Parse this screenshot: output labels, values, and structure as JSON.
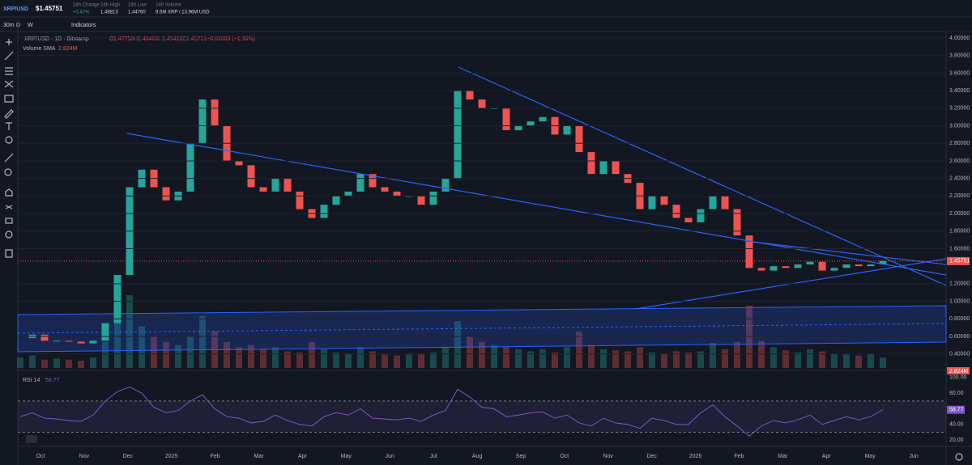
{
  "header": {
    "symbol": "XRP/USD",
    "price": "$1.45751",
    "stats": [
      {
        "label": "24h Change",
        "value": "+0.47%"
      },
      {
        "label": "24h High",
        "value": "1.48813"
      },
      {
        "label": "24h Low",
        "value": "1.44760"
      },
      {
        "label": "24h Volume",
        "value": "9.5M XRP / 13.96M USD"
      }
    ]
  },
  "toolbar": {
    "intervals": [
      "30m",
      "D",
      "W"
    ],
    "indicators": "Indicators"
  },
  "legend": {
    "symbol_line": "XRP/USD · 1D · Bitstamp",
    "ohlc": [
      {
        "label": "O",
        "value": "1.47750"
      },
      {
        "label": "H",
        "value": "1.48466"
      },
      {
        "label": "L",
        "value": "1.45422"
      },
      {
        "label": "C",
        "value": "1.45751"
      }
    ],
    "change": "−0.02003 (−1.36%)",
    "volume_label": "Volume SMA",
    "volume_value": "2.824M"
  },
  "chart_data": {
    "type": "candlestick",
    "close": [
      0.58,
      0.62,
      0.55,
      0.55,
      0.54,
      0.52,
      0.55,
      0.75,
      1.3,
      2.3,
      2.5,
      2.3,
      2.15,
      2.25,
      2.8,
      3.3,
      3.0,
      2.6,
      2.55,
      2.3,
      2.25,
      2.4,
      2.25,
      2.05,
      1.95,
      2.1,
      2.2,
      2.25,
      2.45,
      2.3,
      2.25,
      2.2,
      2.2,
      2.1,
      2.25,
      2.4,
      3.4,
      3.3,
      3.2,
      3.2,
      2.95,
      3.0,
      3.05,
      3.1,
      2.9,
      3.0,
      2.7,
      2.45,
      2.6,
      2.45,
      2.35,
      2.05,
      2.2,
      2.1,
      1.95,
      1.9,
      2.05,
      2.2,
      2.05,
      1.75,
      1.38,
      1.35,
      1.4,
      1.38,
      1.42,
      1.45,
      1.35,
      1.38,
      1.42,
      1.4,
      1.42,
      1.46
    ],
    "volume": [
      1,
      1.2,
      0.8,
      0.9,
      0.8,
      0.7,
      1,
      2.5,
      5,
      7,
      4,
      3,
      2.5,
      2.2,
      3,
      5,
      3.5,
      2.5,
      2,
      2.2,
      1.8,
      2,
      1.6,
      1.5,
      2.5,
      1.8,
      1.5,
      1.4,
      2,
      1.6,
      1.3,
      1.2,
      1.3,
      1.4,
      1.5,
      2,
      4.5,
      3,
      2.5,
      2.2,
      2,
      1.8,
      1.6,
      1.8,
      1.5,
      2,
      3.5,
      2.2,
      1.8,
      1.7,
      1.6,
      2,
      1.5,
      1.4,
      1.6,
      1.5,
      1.6,
      2.4,
      1.8,
      2.5,
      6,
      2.6,
      2,
      1.7,
      1.5,
      1.8,
      1.6,
      1.4,
      1.3,
      1.2,
      1.4,
      1
    ],
    "ylim": [
      0.24,
      4.065
    ],
    "yticks": [
      {
        "value": 4.0,
        "label": "4.00000"
      },
      {
        "value": 3.8,
        "label": "3.80000"
      },
      {
        "value": 3.6,
        "label": "3.60000"
      },
      {
        "value": 3.4,
        "label": "3.40000"
      },
      {
        "value": 3.2,
        "label": "3.20000"
      },
      {
        "value": 3.0,
        "label": "3.00000"
      },
      {
        "value": 2.8,
        "label": "2.80000"
      },
      {
        "value": 2.6,
        "label": "2.60000"
      },
      {
        "value": 2.4,
        "label": "2.40000"
      },
      {
        "value": 2.2,
        "label": "2.20000"
      },
      {
        "value": 2.0,
        "label": "2.00000"
      },
      {
        "value": 1.8,
        "label": "1.80000"
      },
      {
        "value": 1.6,
        "label": "1.60000"
      },
      {
        "value": 1.2,
        "label": "1.20000"
      },
      {
        "value": 1.0,
        "label": "1.00000"
      },
      {
        "value": 0.8,
        "label": "0.80000"
      },
      {
        "value": 0.6,
        "label": "0.60000"
      },
      {
        "value": 0.4,
        "label": "0.40000"
      }
    ],
    "last_price": {
      "value": 1.45751,
      "label": "1.45751"
    },
    "x_labels": [
      "Oct",
      "Nov",
      "Dec",
      "2025",
      "Feb",
      "Mar",
      "Apr",
      "May",
      "Jun",
      "Jul",
      "Aug",
      "Sep",
      "Oct",
      "Nov",
      "Dec",
      "2026",
      "Feb",
      "Mar",
      "Apr",
      "May",
      "Jun"
    ],
    "rsi": {
      "name": "RSI 14",
      "value": 58.77,
      "value_label": "58.77",
      "ylim": [
        14,
        104
      ],
      "band": [
        30,
        70
      ],
      "yticks": [
        {
          "value": 100,
          "label": "100.00"
        },
        {
          "value": 80,
          "label": "80.00"
        },
        {
          "value": 40,
          "label": "40.00"
        },
        {
          "value": 20,
          "label": "20.00"
        }
      ],
      "values": [
        50,
        55,
        48,
        47,
        45,
        44,
        52,
        70,
        82,
        88,
        80,
        62,
        55,
        58,
        70,
        78,
        60,
        50,
        48,
        42,
        44,
        52,
        45,
        40,
        38,
        50,
        55,
        52,
        60,
        48,
        47,
        46,
        48,
        44,
        52,
        58,
        85,
        75,
        62,
        60,
        50,
        52,
        55,
        56,
        48,
        52,
        42,
        38,
        48,
        42,
        40,
        35,
        48,
        45,
        40,
        40,
        55,
        65,
        50,
        38,
        25,
        38,
        45,
        42,
        46,
        52,
        40,
        45,
        50,
        46,
        50,
        58.77
      ]
    }
  }
}
